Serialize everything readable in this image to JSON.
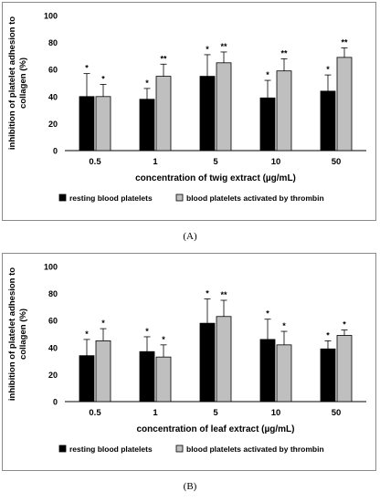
{
  "chart_data": [
    {
      "type": "bar",
      "panel_label": "(A)",
      "xlabel": "concentration of twig extract (µg/mL)",
      "ylabel": "inhibition of platelet adhesion to collagen (%)",
      "ylim": [
        0,
        100
      ],
      "yticks": [
        0,
        20,
        40,
        60,
        80,
        100
      ],
      "categories": [
        "0.5",
        "1",
        "5",
        "10",
        "50"
      ],
      "legend_position": "bottom",
      "series": [
        {
          "name": "resting blood platelets",
          "color": "#000000",
          "values": [
            40,
            38,
            55,
            39,
            44
          ],
          "errors": [
            17,
            8,
            16,
            13,
            12
          ],
          "significance": [
            "*",
            "*",
            "*",
            "*",
            "*"
          ]
        },
        {
          "name": "blood platelets activated by thrombin",
          "color": "#bfbfbf",
          "values": [
            40,
            55,
            65,
            59,
            69
          ],
          "errors": [
            9,
            9,
            8,
            9,
            7
          ],
          "significance": [
            "*",
            "**",
            "**",
            "**",
            "**"
          ]
        }
      ]
    },
    {
      "type": "bar",
      "panel_label": "(B)",
      "xlabel": "concentration of leaf extract (µg/mL)",
      "ylabel": "inhibition of platelet adhesion to collagen (%)",
      "ylim": [
        0,
        100
      ],
      "yticks": [
        0,
        20,
        40,
        60,
        80,
        100
      ],
      "categories": [
        "0.5",
        "1",
        "5",
        "10",
        "50"
      ],
      "legend_position": "bottom",
      "series": [
        {
          "name": "resting blood platelets",
          "color": "#000000",
          "values": [
            34,
            37,
            58,
            46,
            39
          ],
          "errors": [
            12,
            11,
            18,
            15,
            6
          ],
          "significance": [
            "*",
            "*",
            "*",
            "*",
            "*"
          ]
        },
        {
          "name": "blood platelets activated by thrombin",
          "color": "#bfbfbf",
          "values": [
            45,
            33,
            63,
            42,
            49
          ],
          "errors": [
            9,
            9,
            12,
            10,
            4
          ],
          "significance": [
            "*",
            "*",
            "**",
            "*",
            "*"
          ]
        }
      ]
    }
  ]
}
